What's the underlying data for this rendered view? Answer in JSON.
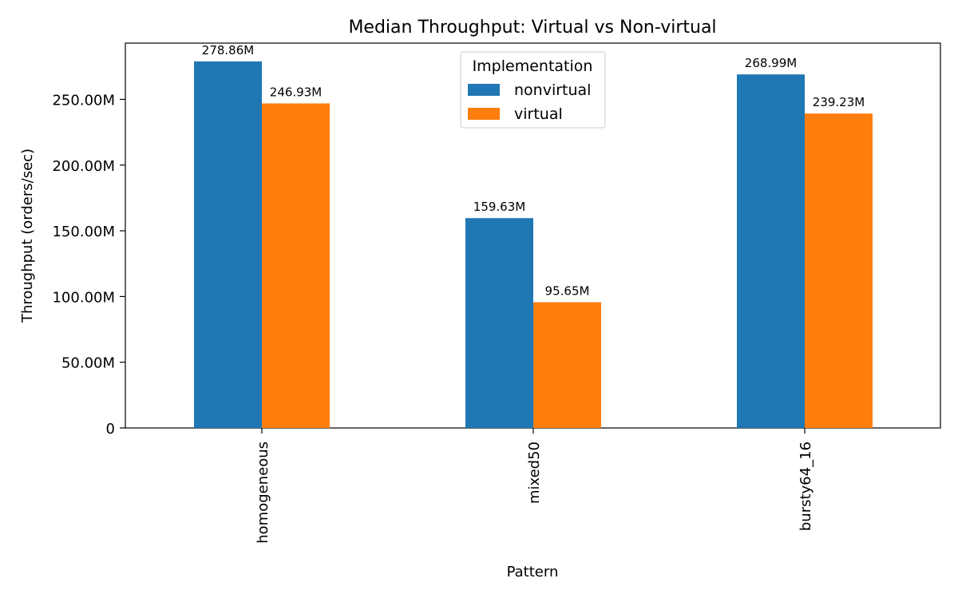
{
  "chart_data": {
    "type": "bar",
    "title": "Median Throughput: Virtual vs Non-virtual",
    "xlabel": "Pattern",
    "ylabel": "Throughput (orders/sec)",
    "categories": [
      "homogeneous",
      "mixed50",
      "bursty64_16"
    ],
    "series": [
      {
        "name": "nonvirtual",
        "color": "#1f77b4",
        "values": [
          278.86,
          159.63,
          268.99
        ],
        "labels": [
          "278.86M",
          "159.63M",
          "268.99M"
        ]
      },
      {
        "name": "virtual",
        "color": "#ff7f0e",
        "values": [
          246.93,
          95.65,
          239.23
        ],
        "labels": [
          "246.93M",
          "95.65M",
          "239.23M"
        ]
      }
    ],
    "ylim": [
      0,
      292.8
    ],
    "yticks": [
      0,
      50,
      100,
      150,
      200,
      250
    ],
    "ytick_labels": [
      "0",
      "50.00M",
      "100.00M",
      "150.00M",
      "200.00M",
      "250.00M"
    ],
    "legend": {
      "title": "Implementation",
      "position": "top-center"
    },
    "grid": false
  }
}
